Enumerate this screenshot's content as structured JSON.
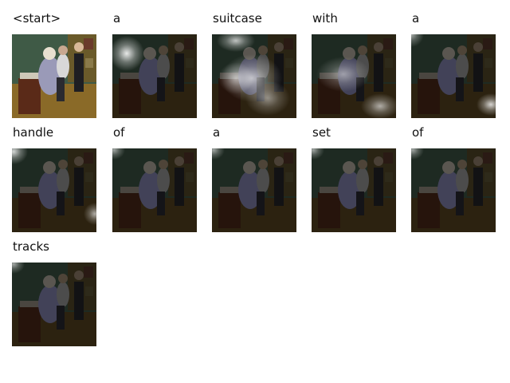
{
  "caption": {
    "tokens": [
      {
        "word": "<start>",
        "heat": "none"
      },
      {
        "word": "a",
        "heat": "top-left"
      },
      {
        "word": "suitcase",
        "heat": "center-band"
      },
      {
        "word": "with",
        "heat": "center-band-soft"
      },
      {
        "word": "a",
        "heat": "top-left-and-bottom-right"
      },
      {
        "word": "handle",
        "heat": "top-left-and-right"
      },
      {
        "word": "of",
        "heat": "top-left-faint"
      },
      {
        "word": "a",
        "heat": "top-left-faint"
      },
      {
        "word": "set",
        "heat": "top-left-faint"
      },
      {
        "word": "of",
        "heat": "top-left-faint"
      },
      {
        "word": "tracks",
        "heat": "top-left-faint"
      }
    ]
  }
}
